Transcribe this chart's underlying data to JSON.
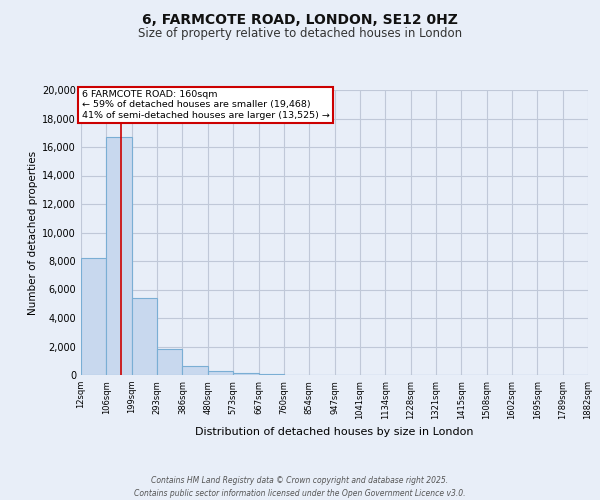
{
  "title": "6, FARMCOTE ROAD, LONDON, SE12 0HZ",
  "subtitle": "Size of property relative to detached houses in London",
  "xlabel": "Distribution of detached houses by size in London",
  "ylabel": "Number of detached properties",
  "bin_edges": [
    12,
    106,
    199,
    293,
    386,
    480,
    573,
    667,
    760,
    854,
    947,
    1041,
    1134,
    1228,
    1321,
    1415,
    1508,
    1602,
    1695,
    1789,
    1882
  ],
  "bar_heights": [
    8200,
    16700,
    5400,
    1800,
    650,
    280,
    130,
    80,
    0,
    0,
    0,
    0,
    0,
    0,
    0,
    0,
    0,
    0,
    0,
    0
  ],
  "bar_color": "#c8d8ee",
  "bar_edge_color": "#7aaed4",
  "property_size": 160,
  "property_line_color": "#cc0000",
  "annotation_title": "6 FARMCOTE ROAD: 160sqm",
  "annotation_line1": "← 59% of detached houses are smaller (19,468)",
  "annotation_line2": "41% of semi-detached houses are larger (13,525) →",
  "annotation_box_facecolor": "#ffffff",
  "annotation_box_edgecolor": "#cc0000",
  "ylim": [
    0,
    20000
  ],
  "yticks": [
    0,
    2000,
    4000,
    6000,
    8000,
    10000,
    12000,
    14000,
    16000,
    18000,
    20000
  ],
  "background_color": "#e8eef8",
  "grid_color": "#c0c8d8",
  "footer1": "Contains HM Land Registry data © Crown copyright and database right 2025.",
  "footer2": "Contains public sector information licensed under the Open Government Licence v3.0."
}
